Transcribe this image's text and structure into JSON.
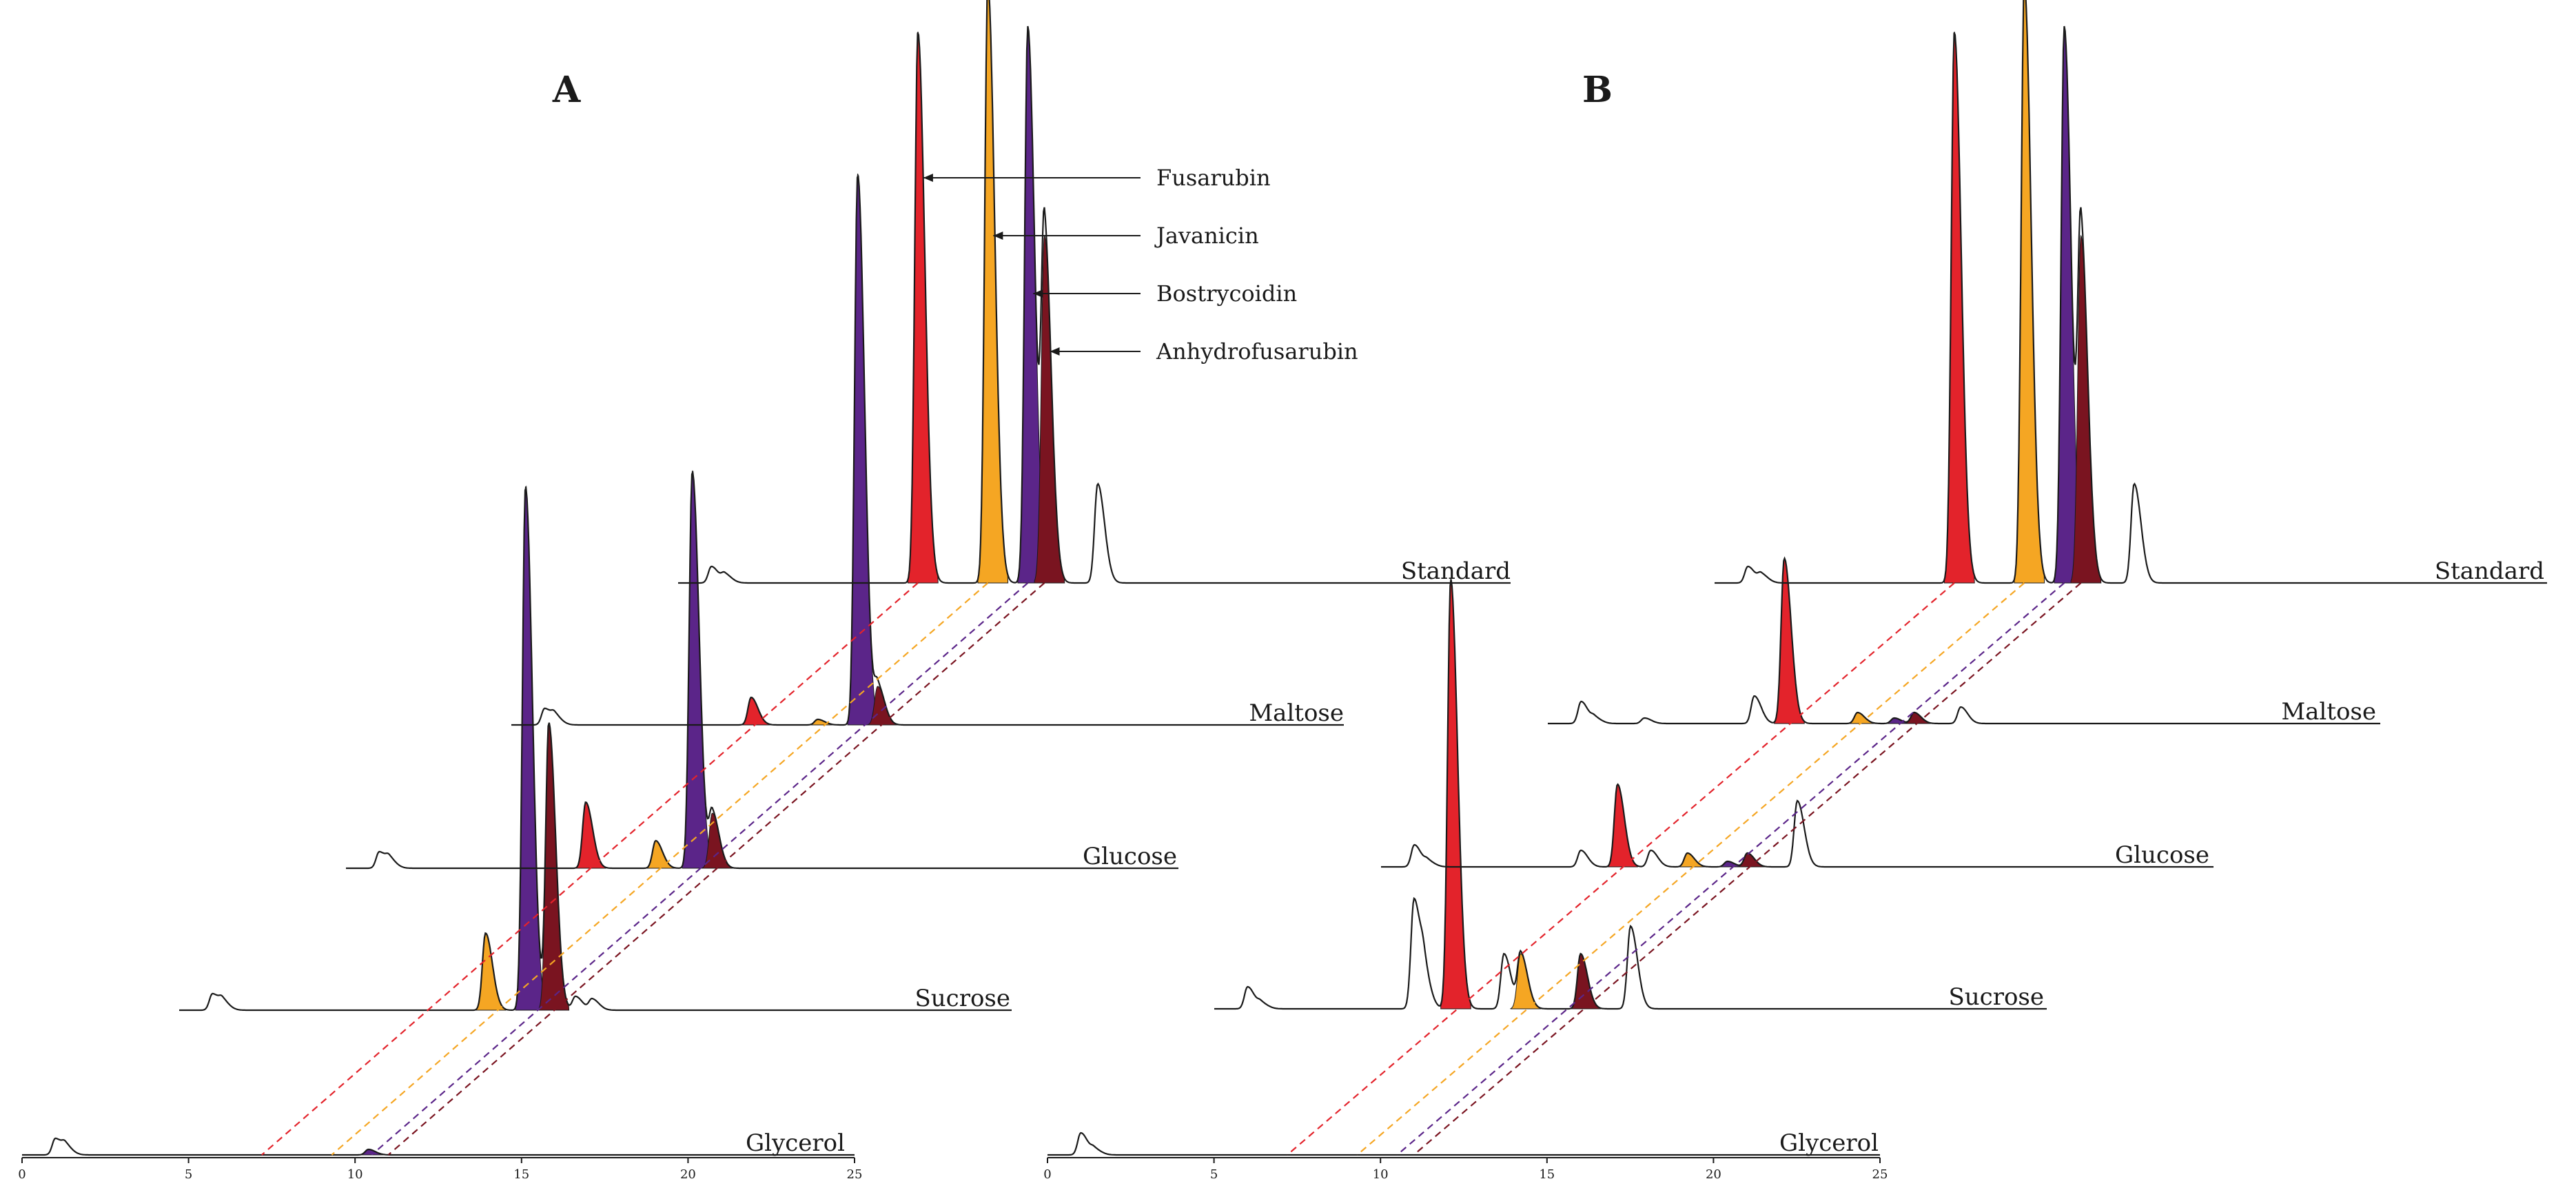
{
  "colors": {
    "fusarubin": "#e3232b",
    "javanicin": "#f5a623",
    "bostrycoidin": "#5b2589",
    "anhydrofusarubin": "#7a1420",
    "line": "#1a1a1a"
  },
  "legend": [
    {
      "name": "Fusarubin",
      "key": "fusarubin"
    },
    {
      "name": "Javanicin",
      "key": "javanicin"
    },
    {
      "name": "Bostrycoidin",
      "key": "bostrycoidin"
    },
    {
      "name": "Anhydrofusarubin",
      "key": "anhydrofusarubin"
    }
  ],
  "chart_data": [
    {
      "type": "line",
      "panel": "A",
      "xlabel": "",
      "ylabel": "",
      "x_range": [
        0,
        25
      ],
      "x_ticks": [
        0,
        5,
        10,
        15,
        20,
        25
      ],
      "traces": [
        {
          "name": "Glycerol",
          "peaks": [
            {
              "x": 1.0,
              "h": 0.03
            },
            {
              "x": 1.3,
              "h": 0.015
            },
            {
              "x": 10.4,
              "h": 0.01,
              "compound": "bostrycoidin"
            }
          ]
        },
        {
          "name": "Sucrose",
          "peaks": [
            {
              "x": 1.0,
              "h": 0.03
            },
            {
              "x": 1.3,
              "h": 0.015
            },
            {
              "x": 9.2,
              "h": 0.14,
              "compound": "javanicin"
            },
            {
              "x": 10.4,
              "h": 0.95,
              "compound": "bostrycoidin"
            },
            {
              "x": 11.1,
              "h": 0.52,
              "compound": "anhydrofusarubin"
            },
            {
              "x": 11.9,
              "h": 0.025
            },
            {
              "x": 12.4,
              "h": 0.02
            }
          ]
        },
        {
          "name": "Glucose",
          "peaks": [
            {
              "x": 1.0,
              "h": 0.03
            },
            {
              "x": 1.3,
              "h": 0.015
            },
            {
              "x": 7.2,
              "h": 0.12,
              "compound": "fusarubin"
            },
            {
              "x": 9.3,
              "h": 0.05,
              "compound": "javanicin"
            },
            {
              "x": 10.4,
              "h": 0.72,
              "compound": "bostrycoidin"
            },
            {
              "x": 11.0,
              "h": 0.1,
              "compound": "anhydrofusarubin"
            }
          ]
        },
        {
          "name": "Maltose",
          "peaks": [
            {
              "x": 1.0,
              "h": 0.03
            },
            {
              "x": 1.3,
              "h": 0.015
            },
            {
              "x": 7.2,
              "h": 0.05,
              "compound": "fusarubin"
            },
            {
              "x": 9.2,
              "h": 0.01,
              "compound": "javanicin"
            },
            {
              "x": 10.4,
              "h": 1.0,
              "compound": "bostrycoidin"
            },
            {
              "x": 11.0,
              "h": 0.07,
              "compound": "anhydrofusarubin"
            }
          ]
        },
        {
          "name": "Standard",
          "peaks": [
            {
              "x": 1.0,
              "h": 0.03
            },
            {
              "x": 1.4,
              "h": 0.015
            },
            {
              "x": 7.2,
              "h": 1.0,
              "compound": "fusarubin"
            },
            {
              "x": 9.3,
              "h": 1.09,
              "compound": "javanicin"
            },
            {
              "x": 10.5,
              "h": 1.01,
              "compound": "bostrycoidin"
            },
            {
              "x": 11.0,
              "h": 0.63,
              "compound": "anhydrofusarubin"
            },
            {
              "x": 12.6,
              "h": 0.18
            }
          ]
        }
      ]
    },
    {
      "type": "line",
      "panel": "B",
      "xlabel": "",
      "ylabel": "",
      "x_range": [
        0,
        25
      ],
      "x_ticks": [
        0,
        5,
        10,
        15,
        20,
        25
      ],
      "traces": [
        {
          "name": "Glycerol",
          "peaks": [
            {
              "x": 1.0,
              "h": 0.04
            },
            {
              "x": 1.4,
              "h": 0.01
            }
          ]
        },
        {
          "name": "Sucrose",
          "peaks": [
            {
              "x": 1.0,
              "h": 0.04
            },
            {
              "x": 1.4,
              "h": 0.01
            },
            {
              "x": 6.0,
              "h": 0.2
            },
            {
              "x": 6.3,
              "h": 0.05
            },
            {
              "x": 7.1,
              "h": 0.78,
              "compound": "fusarubin"
            },
            {
              "x": 8.7,
              "h": 0.1
            },
            {
              "x": 9.2,
              "h": 0.1,
              "compound": "javanicin"
            },
            {
              "x": 11.0,
              "h": 0.1,
              "compound": "anhydrofusarubin"
            },
            {
              "x": 12.5,
              "h": 0.15
            }
          ]
        },
        {
          "name": "Glucose",
          "peaks": [
            {
              "x": 1.0,
              "h": 0.04
            },
            {
              "x": 1.4,
              "h": 0.01
            },
            {
              "x": 6.0,
              "h": 0.03
            },
            {
              "x": 7.1,
              "h": 0.15,
              "compound": "fusarubin"
            },
            {
              "x": 8.1,
              "h": 0.03
            },
            {
              "x": 9.2,
              "h": 0.025,
              "compound": "javanicin"
            },
            {
              "x": 10.4,
              "h": 0.01,
              "compound": "bostrycoidin"
            },
            {
              "x": 11.0,
              "h": 0.025,
              "compound": "anhydrofusarubin"
            },
            {
              "x": 12.5,
              "h": 0.12
            }
          ]
        },
        {
          "name": "Maltose",
          "peaks": [
            {
              "x": 1.0,
              "h": 0.04
            },
            {
              "x": 1.4,
              "h": 0.01
            },
            {
              "x": 2.9,
              "h": 0.01
            },
            {
              "x": 6.2,
              "h": 0.05
            },
            {
              "x": 7.1,
              "h": 0.3,
              "compound": "fusarubin"
            },
            {
              "x": 9.3,
              "h": 0.02,
              "compound": "javanicin"
            },
            {
              "x": 10.4,
              "h": 0.01,
              "compound": "bostrycoidin"
            },
            {
              "x": 11.0,
              "h": 0.02,
              "compound": "anhydrofusarubin"
            },
            {
              "x": 12.4,
              "h": 0.03
            }
          ]
        },
        {
          "name": "Standard",
          "peaks": [
            {
              "x": 1.0,
              "h": 0.03
            },
            {
              "x": 1.4,
              "h": 0.015
            },
            {
              "x": 7.2,
              "h": 1.0,
              "compound": "fusarubin"
            },
            {
              "x": 9.3,
              "h": 1.09,
              "compound": "javanicin"
            },
            {
              "x": 10.5,
              "h": 1.01,
              "compound": "bostrycoidin"
            },
            {
              "x": 11.0,
              "h": 0.63,
              "compound": "anhydrofusarubin"
            },
            {
              "x": 12.6,
              "h": 0.18
            }
          ]
        }
      ]
    }
  ]
}
